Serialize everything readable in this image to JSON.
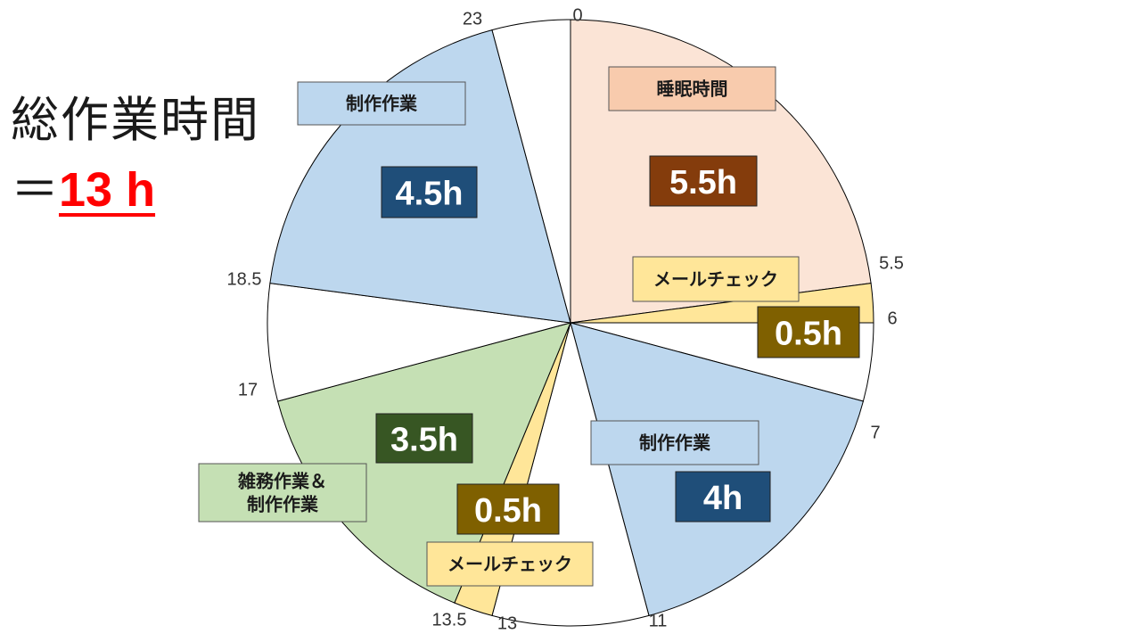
{
  "summary": {
    "title": "総作業時間",
    "prefix": "＝",
    "total": "13 h"
  },
  "chart_data": {
    "type": "pie",
    "hour_ticks": [
      "0",
      "5.5",
      "6",
      "7",
      "11",
      "13",
      "13.5",
      "17",
      "18.5",
      "23"
    ],
    "slices": [
      {
        "start": 0,
        "end": 5.5,
        "color": "#FBE4D6",
        "category": "睡眠時間",
        "category_bg": "#F8CBAD",
        "value_label": "5.5h",
        "value_bg": "#843C0C"
      },
      {
        "start": 5.5,
        "end": 6,
        "color": "#FFE699",
        "category": "メールチェック",
        "category_bg": "#FFE699",
        "value_label": "0.5h",
        "value_bg": "#7F6000"
      },
      {
        "start": 6,
        "end": 7,
        "color": "#FFFFFF"
      },
      {
        "start": 7,
        "end": 11,
        "color": "#BDD7EE",
        "category": "制作作業",
        "category_bg": "#BDD7EE",
        "value_label": "4h",
        "value_bg": "#1F4E79"
      },
      {
        "start": 11,
        "end": 13,
        "color": "#FFFFFF"
      },
      {
        "start": 13,
        "end": 13.5,
        "color": "#FFE699",
        "category": "メールチェック",
        "category_bg": "#FFE699",
        "value_label": "0.5h",
        "value_bg": "#7F6000"
      },
      {
        "start": 13.5,
        "end": 17,
        "color": "#C5E0B4",
        "category": "雑務作業＆\n制作作業",
        "category_bg": "#C5E0B4",
        "value_label": "3.5h",
        "value_bg": "#375623"
      },
      {
        "start": 17,
        "end": 18.5,
        "color": "#FFFFFF"
      },
      {
        "start": 18.5,
        "end": 23,
        "color": "#BDD7EE",
        "category": "制作作業",
        "category_bg": "#BDD7EE",
        "value_label": "4.5h",
        "value_bg": "#1F4E79"
      },
      {
        "start": 23,
        "end": 24,
        "color": "#FFFFFF"
      }
    ]
  }
}
